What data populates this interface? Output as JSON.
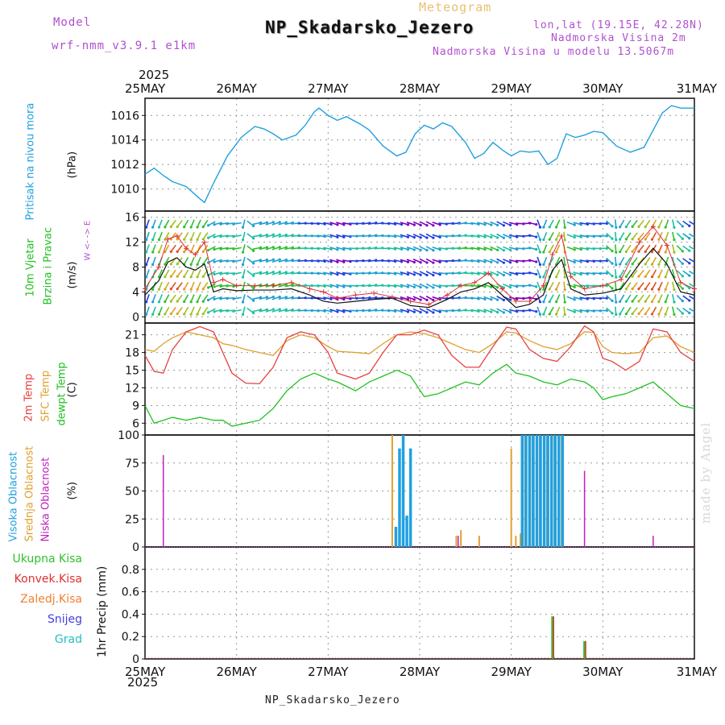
{
  "header": {
    "model_label": "Model",
    "model_name": "wrf-nmm_v3.9.1 e1km",
    "meteogram_label": "Meteogram",
    "title": "NP_Skadarsko_Jezero",
    "lonlat": "lon,lat (19.15E, 42.28N)",
    "altitude": "Nadmorska Visina 2m",
    "model_altitude": "Nadmorska Visina u modelu 13.5067m"
  },
  "colors": {
    "pressure": "#20a0e0",
    "wind_speed": "#111111",
    "gust": "#e03030",
    "temp2m": "#e84040",
    "sfc_temp": "#e0a030",
    "dewpoint": "#20c020",
    "high_cloud": "#20a0e0",
    "mid_cloud": "#e0a030",
    "low_cloud": "#c020c0",
    "total_rain": "#30c030",
    "conv_rain": "#e03030",
    "freezing_rain": "#f08030",
    "snow": "#4040e0",
    "hail": "#20c0c0"
  },
  "time_axis": {
    "year": "2025",
    "ticks": [
      "25MAY",
      "26MAY",
      "27MAY",
      "28MAY",
      "29MAY",
      "30MAY",
      "31MAY"
    ]
  },
  "panel_labels": {
    "pressure": "Pritisak na nivou mora",
    "pressure_unit": "(hPa)",
    "wind_1": "10m Vjetar",
    "wind_2": "Brzina i Pravac",
    "wind_unit": "(m/s)",
    "compass": "W <- -> E",
    "temp_1": "2m Temp",
    "temp_2": "SFC Temp",
    "temp_3": "dewpt Temp",
    "temp_unit": "(C)",
    "cloud_1": "Visoka Oblacnost",
    "cloud_2": "Srednja Oblacnost",
    "cloud_3": "Niska Oblacnost",
    "cloud_unit": "(%)",
    "precip_unit": "1hr Precip (mm)"
  },
  "precip_legend": [
    "Ukupna Kisa",
    "Konvek.Kisa",
    "Zaledj.Kisa",
    "Snijeg",
    "Grad"
  ],
  "credit": "made by Angel",
  "footer": "NP_Skadarsko_Jezero",
  "chart_data": [
    {
      "type": "line",
      "name": "pressure",
      "xlabel": "",
      "ylabel": "(hPa)",
      "ylim": [
        1008.2,
        1017.4
      ],
      "yticks": [
        1010,
        1012,
        1014,
        1016
      ],
      "x_days": [
        0,
        0.1,
        0.2,
        0.3,
        0.45,
        0.6,
        0.65,
        0.75,
        0.9,
        1.05,
        1.2,
        1.3,
        1.4,
        1.5,
        1.65,
        1.75,
        1.85,
        1.9,
        2.0,
        2.1,
        2.2,
        2.35,
        2.45,
        2.6,
        2.75,
        2.85,
        2.95,
        3.05,
        3.15,
        3.25,
        3.35,
        3.5,
        3.6,
        3.7,
        3.8,
        3.9,
        4.0,
        4.1,
        4.2,
        4.3,
        4.4,
        4.5,
        4.6,
        4.7,
        4.8,
        4.9,
        5.0,
        5.15,
        5.3,
        5.45,
        5.55,
        5.65,
        5.75,
        5.85,
        5.95,
        6.0
      ],
      "values": [
        1011.2,
        1011.7,
        1011.1,
        1010.6,
        1010.2,
        1009.2,
        1008.9,
        1010.5,
        1012.7,
        1014.2,
        1015.1,
        1014.9,
        1014.5,
        1014.0,
        1014.4,
        1015.2,
        1016.3,
        1016.6,
        1016.0,
        1015.6,
        1015.9,
        1015.3,
        1014.8,
        1013.5,
        1012.7,
        1013.0,
        1014.5,
        1015.2,
        1014.9,
        1015.4,
        1015.1,
        1013.8,
        1012.5,
        1012.9,
        1013.8,
        1013.2,
        1012.7,
        1013.1,
        1013.0,
        1013.1,
        1012.0,
        1012.5,
        1014.5,
        1014.2,
        1014.4,
        1014.7,
        1014.6,
        1013.5,
        1013.0,
        1013.4,
        1014.8,
        1016.2,
        1016.8,
        1016.6,
        1016.6,
        1016.6
      ]
    },
    {
      "type": "line",
      "name": "wind",
      "xlabel": "",
      "ylabel": "(m/s)",
      "ylim": [
        -1,
        17
      ],
      "yticks": [
        0,
        4,
        8,
        12,
        16
      ],
      "x_days": [
        0,
        0.15,
        0.25,
        0.35,
        0.45,
        0.55,
        0.65,
        0.75,
        0.85,
        1.0,
        1.2,
        1.4,
        1.6,
        1.8,
        1.95,
        2.1,
        2.3,
        2.5,
        2.7,
        2.9,
        3.1,
        3.3,
        3.45,
        3.6,
        3.75,
        3.9,
        4.05,
        4.2,
        4.35,
        4.45,
        4.55,
        4.65,
        4.8,
        5.0,
        5.2,
        5.4,
        5.55,
        5.7,
        5.85,
        6.0
      ],
      "speed": [
        3.5,
        5.8,
        8.8,
        9.5,
        8.0,
        7.5,
        8.5,
        4.0,
        4.5,
        4.2,
        4.3,
        4.3,
        4.5,
        3.5,
        2.5,
        2.2,
        2.5,
        2.8,
        3.0,
        1.8,
        1.5,
        2.8,
        4.0,
        4.5,
        5.5,
        3.5,
        1.5,
        2.0,
        3.5,
        7.5,
        9.2,
        4.5,
        3.5,
        3.8,
        4.5,
        8.5,
        11.0,
        8.5,
        4.0,
        3.5
      ],
      "gust": [
        4.5,
        8.0,
        12.5,
        13.0,
        11.0,
        10.0,
        12.0,
        5.5,
        6.0,
        5.0,
        5.0,
        5.0,
        5.5,
        4.5,
        4.0,
        3.0,
        3.5,
        3.8,
        3.2,
        2.5,
        2.0,
        3.5,
        5.0,
        5.5,
        7.0,
        4.5,
        2.5,
        2.5,
        5.0,
        10.0,
        13.0,
        6.5,
        4.5,
        5.0,
        6.0,
        12.0,
        14.5,
        11.5,
        5.5,
        4.5
      ],
      "direction_deg": [
        200,
        200,
        210,
        220,
        210,
        200,
        210,
        250,
        260,
        270,
        80,
        70,
        80,
        90,
        100,
        110,
        90,
        80,
        100,
        110,
        120,
        90,
        80,
        100,
        110,
        120,
        100,
        80,
        200,
        210,
        200,
        110,
        100,
        90,
        210,
        220,
        210,
        200,
        130,
        120
      ]
    },
    {
      "type": "line",
      "name": "temperature",
      "xlabel": "",
      "ylabel": "(C)",
      "ylim": [
        4,
        23
      ],
      "yticks": [
        6,
        9,
        12,
        15,
        18,
        21
      ],
      "x_days": [
        0,
        0.1,
        0.2,
        0.3,
        0.45,
        0.6,
        0.75,
        0.85,
        0.95,
        1.1,
        1.25,
        1.4,
        1.55,
        1.7,
        1.85,
        2.0,
        2.1,
        2.3,
        2.45,
        2.6,
        2.75,
        2.9,
        3.05,
        3.2,
        3.35,
        3.5,
        3.65,
        3.8,
        3.95,
        4.05,
        4.2,
        4.35,
        4.5,
        4.65,
        4.8,
        4.9,
        5.0,
        5.1,
        5.25,
        5.4,
        5.55,
        5.7,
        5.85,
        6.0
      ],
      "temp2m": [
        17.5,
        14.8,
        14.5,
        18.5,
        21.5,
        22.4,
        21.5,
        18.0,
        14.5,
        12.8,
        12.7,
        15.5,
        20.5,
        21.5,
        21.0,
        18.0,
        14.5,
        13.5,
        14.5,
        18.0,
        21.0,
        21.0,
        21.8,
        21.0,
        17.5,
        15.5,
        15.5,
        19.0,
        22.3,
        22.0,
        18.5,
        17.0,
        16.5,
        19.0,
        22.5,
        21.5,
        17.0,
        16.5,
        15.0,
        16.5,
        22.0,
        21.5,
        18.0,
        16.5
      ],
      "sfc_temp": [
        18.5,
        18.2,
        19.5,
        20.5,
        21.5,
        21.0,
        20.5,
        19.5,
        19.2,
        18.5,
        18.0,
        17.5,
        20.0,
        21.0,
        20.5,
        19.0,
        18.2,
        18.0,
        17.8,
        19.5,
        21.0,
        21.5,
        21.2,
        20.5,
        19.5,
        18.5,
        18.0,
        19.5,
        21.5,
        21.3,
        20.0,
        19.0,
        18.5,
        19.5,
        21.5,
        21.4,
        19.0,
        18.0,
        17.8,
        18.0,
        20.5,
        20.8,
        19.0,
        18.0
      ],
      "dewpoint": [
        9.0,
        6.0,
        6.5,
        7.0,
        6.5,
        7.0,
        6.5,
        6.5,
        5.5,
        6.0,
        6.5,
        8.5,
        11.5,
        13.5,
        14.5,
        13.5,
        13.0,
        11.5,
        13.0,
        14.0,
        15.0,
        14.0,
        10.5,
        11.0,
        12.0,
        13.0,
        12.5,
        14.5,
        16.0,
        14.5,
        14.0,
        13.0,
        12.5,
        13.5,
        13.0,
        12.0,
        10.0,
        10.5,
        11.0,
        12.0,
        13.0,
        11.0,
        9.0,
        8.5
      ]
    },
    {
      "type": "bar",
      "name": "cloud",
      "xlabel": "",
      "ylabel": "(%)",
      "ylim": [
        0,
        100
      ],
      "yticks": [
        0,
        25,
        50,
        75,
        100
      ],
      "high": [
        [
          2.74,
          18
        ],
        [
          2.78,
          88
        ],
        [
          2.82,
          100
        ],
        [
          2.86,
          28
        ],
        [
          2.9,
          88
        ],
        [
          4.12,
          100
        ],
        [
          4.16,
          100
        ],
        [
          4.2,
          100
        ],
        [
          4.24,
          100
        ],
        [
          4.28,
          100
        ],
        [
          4.32,
          100
        ],
        [
          4.36,
          100
        ],
        [
          4.4,
          100
        ],
        [
          4.44,
          100
        ],
        [
          4.48,
          100
        ],
        [
          4.52,
          100
        ],
        [
          4.56,
          100
        ]
      ],
      "mid": [
        [
          2.7,
          100
        ],
        [
          3.4,
          10
        ],
        [
          3.45,
          15
        ],
        [
          3.65,
          10
        ],
        [
          4.0,
          88
        ],
        [
          4.05,
          10
        ],
        [
          4.1,
          12
        ],
        [
          4.15,
          100
        ],
        [
          4.23,
          100
        ],
        [
          4.31,
          100
        ],
        [
          4.39,
          100
        ],
        [
          4.47,
          100
        ],
        [
          4.55,
          100
        ]
      ],
      "low": [
        [
          0.2,
          82
        ],
        [
          3.42,
          10
        ],
        [
          4.8,
          68
        ],
        [
          5.55,
          10
        ]
      ]
    },
    {
      "type": "bar",
      "name": "precipitation",
      "xlabel": "",
      "ylabel": "1hr Precip (mm)",
      "ylim": [
        0,
        1.0
      ],
      "yticks": [
        0,
        0.2,
        0.4,
        0.6,
        0.8
      ],
      "total_rain": [
        [
          4.45,
          0.38
        ],
        [
          4.8,
          0.16
        ]
      ],
      "conv_rain": [
        [
          4.46,
          0.38
        ],
        [
          4.81,
          0.16
        ]
      ],
      "freezing_rain": [],
      "snow": [],
      "hail": []
    }
  ]
}
